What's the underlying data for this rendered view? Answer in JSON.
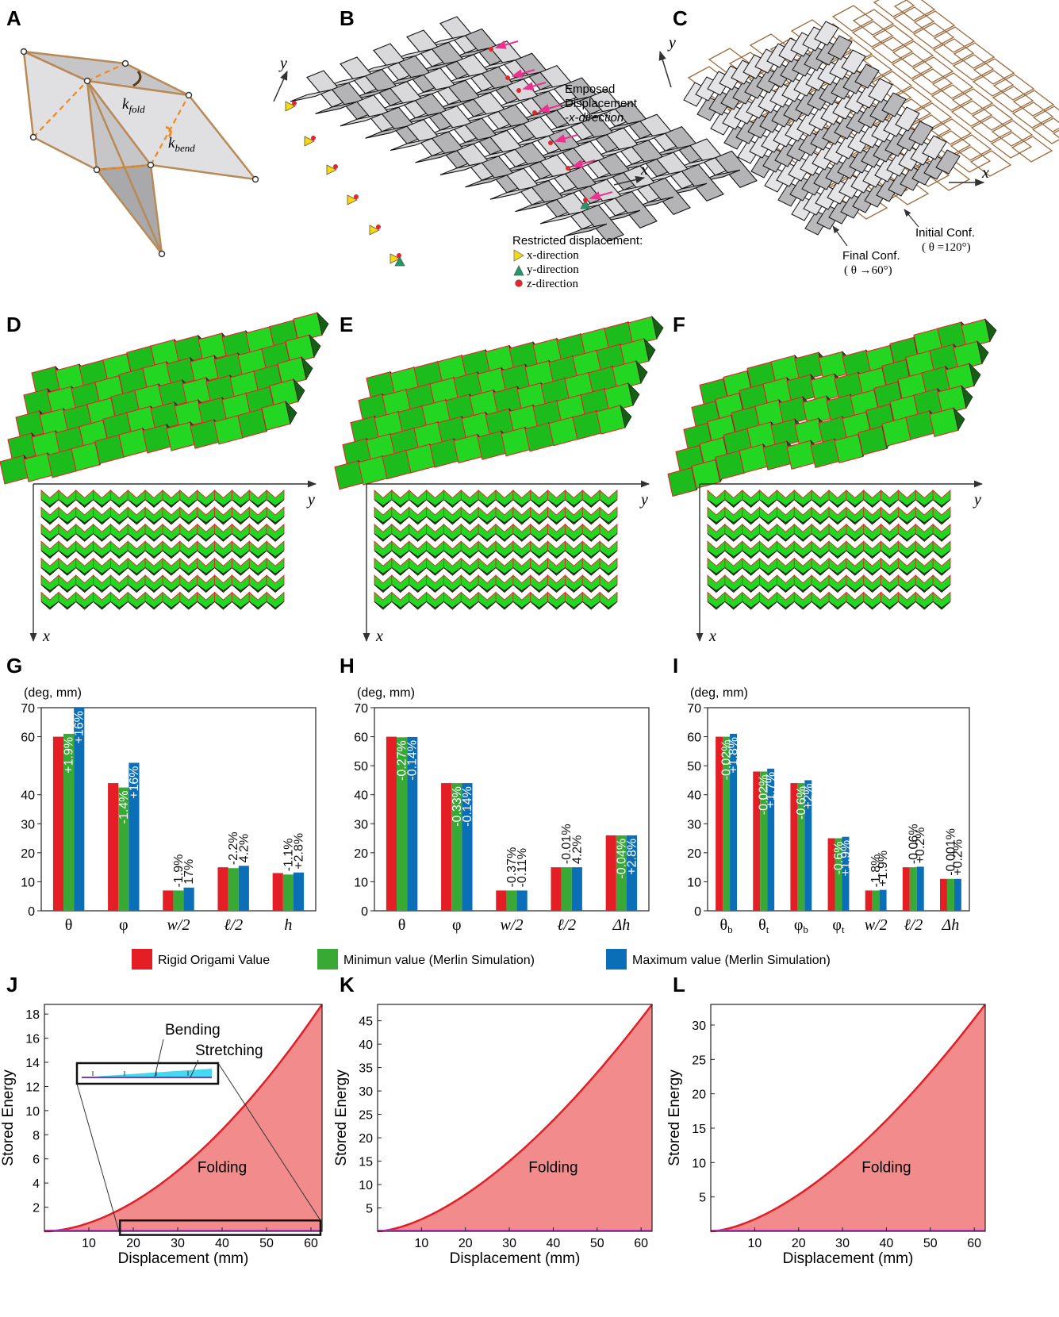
{
  "panel_labels": [
    "A",
    "B",
    "C",
    "D",
    "E",
    "F",
    "G",
    "H",
    "I",
    "J",
    "K",
    "L"
  ],
  "panel_a": {
    "k_fold": "k",
    "k_fold_sub": "fold",
    "k_bend": "k",
    "k_bend_sub": "bend"
  },
  "panel_b": {
    "emposed_line1": "Emposed",
    "emposed_line2": "Displacement",
    "emposed_line3": "-x-direction",
    "restricted_title": "Restricted displacement:",
    "legend": [
      "x-direction",
      "y-direction",
      "z-direction"
    ],
    "axis_x": "x",
    "axis_y": "y"
  },
  "panel_c": {
    "initial_line1": "Initial Conf.",
    "initial_line2": "( θ =120°)",
    "final_line1": "Final Conf.",
    "final_line2": "( θ →60°)",
    "axis_x": "x",
    "axis_y": "y"
  },
  "panel_def": {
    "axis_y": "y",
    "axis_x": "x"
  },
  "colors": {
    "rigid": "#e31e24",
    "min": "#39a935",
    "max": "#0b6fb8",
    "fill": "#f28c8c",
    "curve": "#e31e24",
    "green": "#22d622",
    "darkgreen": "#145f14"
  },
  "legend_bars": [
    "Rigid Origami Value",
    "Minimun value (Merlin Simulation)",
    "Maximum value (Merlin Simulation)"
  ],
  "chart_data": [
    {
      "panel": "G",
      "type": "bar",
      "unit_label": "(deg, mm)",
      "ylim": [
        0,
        70
      ],
      "yticks": [
        "0",
        "10",
        "20",
        "30",
        "40",
        "60",
        "70"
      ],
      "ytick_values": [
        0,
        10,
        20,
        30,
        40,
        60,
        70
      ],
      "categories": [
        "θ",
        "φ",
        "w/2",
        "ℓ/2",
        "h"
      ],
      "series": [
        {
          "name": "Rigid Origami Value",
          "values": [
            60,
            44,
            7,
            15,
            13
          ]
        },
        {
          "name": "Minimun value (Merlin Simulation)",
          "values": [
            61,
            42.5,
            7,
            14.7,
            12.5
          ]
        },
        {
          "name": "Maximum value (Merlin Simulation)",
          "values": [
            70,
            51,
            8,
            15.5,
            13.2
          ]
        }
      ],
      "labels_min": [
        "+1.9%",
        "-1.4%",
        "-1.9%",
        "-2.2%",
        "-1.1%"
      ],
      "labels_max": [
        "+16%",
        "+16%",
        "17%",
        "4.2%",
        "+2.8%"
      ]
    },
    {
      "panel": "H",
      "type": "bar",
      "unit_label": "(deg, mm)",
      "ylim": [
        0,
        70
      ],
      "yticks": [
        "0",
        "10",
        "20",
        "30",
        "40",
        "50",
        "60",
        "70"
      ],
      "ytick_values": [
        0,
        10,
        20,
        30,
        40,
        50,
        60,
        70
      ],
      "categories": [
        "θ",
        "φ",
        "w/2",
        "ℓ/2",
        "Δh"
      ],
      "series": [
        {
          "name": "Rigid Origami Value",
          "values": [
            60,
            44,
            7,
            15,
            26
          ]
        },
        {
          "name": "Minimun value (Merlin Simulation)",
          "values": [
            59.8,
            44,
            7,
            15,
            26
          ]
        },
        {
          "name": "Maximum value (Merlin Simulation)",
          "values": [
            59.9,
            44,
            7,
            15,
            26
          ]
        }
      ],
      "labels_min": [
        "-0.27%",
        "-0.33%",
        "-0.37%",
        "-0.01%",
        "-0.04%"
      ],
      "labels_max": [
        "-0.14%",
        "-0.14%",
        "-0.11%",
        "4.2%",
        "+2.8%"
      ]
    },
    {
      "panel": "I",
      "type": "bar",
      "unit_label": "(deg, mm)",
      "ylim": [
        0,
        70
      ],
      "yticks": [
        "0",
        "10",
        "20",
        "30",
        "40",
        "50",
        "60",
        "70"
      ],
      "ytick_values": [
        0,
        10,
        20,
        30,
        40,
        50,
        60,
        70
      ],
      "categories": [
        "θ",
        "θ",
        "φ",
        "φ",
        "w/2",
        "ℓ/2",
        "Δh"
      ],
      "category_subs": [
        "b",
        "t",
        "b",
        "t",
        "",
        "",
        ""
      ],
      "series": [
        {
          "name": "Rigid Origami Value",
          "values": [
            60,
            48,
            44,
            25,
            7,
            15,
            11
          ]
        },
        {
          "name": "Minimun value (Merlin Simulation)",
          "values": [
            60,
            48,
            44,
            25,
            7,
            15,
            11
          ]
        },
        {
          "name": "Maximum value (Merlin Simulation)",
          "values": [
            61,
            49,
            45,
            25.5,
            7.2,
            15.2,
            11
          ]
        }
      ],
      "labels_min": [
        "-0.02%",
        "-0.02%",
        "-0.6%",
        "-0.6%",
        "-1.8%",
        "-0.06%",
        "-0.001%"
      ],
      "labels_max": [
        "+1.8%",
        "+1.7%",
        "+2%",
        "+1.9%",
        "+1.9%",
        "+0.2%",
        "+0.2%"
      ]
    },
    {
      "panel": "J",
      "type": "area",
      "xlabel": "Displacement  (mm)",
      "ylabel": "Stored Energy",
      "xlim": [
        0,
        62.5
      ],
      "ylim": [
        0,
        18.8
      ],
      "xticks": [
        10,
        20,
        30,
        40,
        50,
        60
      ],
      "yticks": [
        2,
        4,
        6,
        8,
        10,
        12,
        14,
        16,
        18
      ],
      "series": [
        {
          "name": "Folding",
          "x": [
            0,
            62.5
          ],
          "y": [
            0,
            18.8
          ],
          "shape": "power",
          "exponent": 1.8
        }
      ],
      "annotations": [
        "Folding",
        "Bending",
        "Stretching"
      ]
    },
    {
      "panel": "K",
      "type": "area",
      "xlabel": "Displacement (mm)",
      "ylabel": "Stored Energy",
      "xlim": [
        0,
        62.5
      ],
      "ylim": [
        0,
        48.5
      ],
      "xticks": [
        10,
        20,
        30,
        40,
        50,
        60
      ],
      "yticks": [
        5,
        10,
        15,
        20,
        25,
        30,
        35,
        40,
        45
      ],
      "series": [
        {
          "name": "Folding",
          "x": [
            0,
            62.5
          ],
          "y": [
            0,
            48.5
          ],
          "shape": "power",
          "exponent": 1.6
        }
      ],
      "annotations": [
        "Folding"
      ]
    },
    {
      "panel": "L",
      "type": "area",
      "xlabel": "Displacement (mm)",
      "ylabel": "Stored Energy",
      "xlim": [
        0,
        62.5
      ],
      "ylim": [
        0,
        33
      ],
      "xticks": [
        10,
        20,
        30,
        40,
        50,
        60
      ],
      "yticks": [
        5,
        10,
        15,
        20,
        25,
        30
      ],
      "series": [
        {
          "name": "Folding",
          "x": [
            0,
            62.5
          ],
          "y": [
            0,
            33
          ],
          "shape": "power",
          "exponent": 1.6
        }
      ],
      "annotations": [
        "Folding"
      ]
    }
  ]
}
